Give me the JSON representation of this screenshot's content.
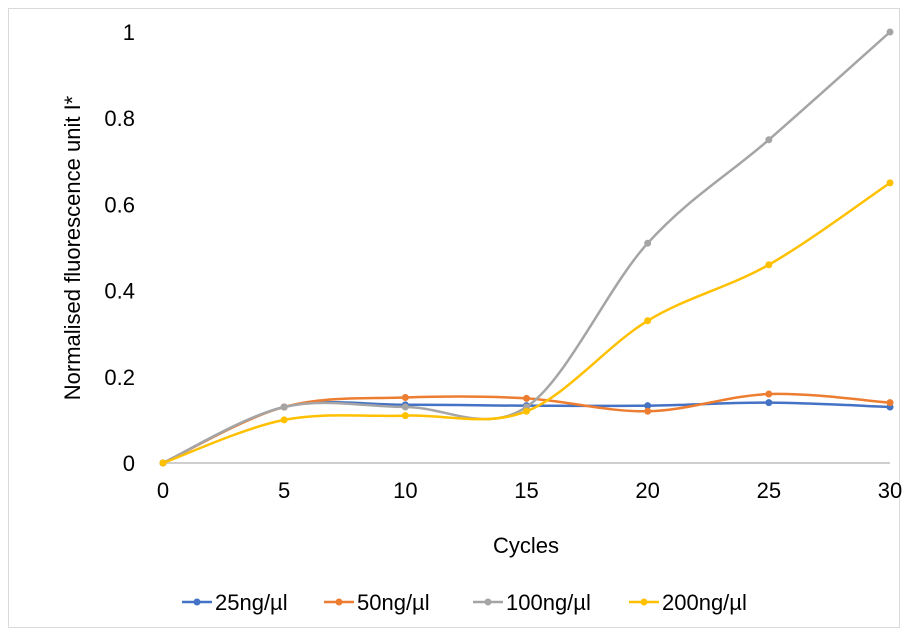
{
  "chart_data": {
    "type": "line",
    "smooth": true,
    "title": "",
    "xlabel": "Cycles",
    "ylabel": "Normalised fluorescence unit I*",
    "x": [
      0,
      5,
      10,
      15,
      20,
      25,
      30
    ],
    "xlim": [
      0,
      30
    ],
    "ylim": [
      0,
      1
    ],
    "xticks": [
      "0",
      "5",
      "10",
      "15",
      "20",
      "25",
      "30"
    ],
    "yticks": [
      "0",
      "0.2",
      "0.4",
      "0.6",
      "0.8",
      "1"
    ],
    "grid": false,
    "legend_position": "bottom",
    "series": [
      {
        "name": "25ng/µl",
        "color": "#4472C4",
        "values": [
          0,
          0.13,
          0.135,
          0.133,
          0.133,
          0.14,
          0.13
        ]
      },
      {
        "name": "50ng/µl",
        "color": "#ED7D31",
        "values": [
          0,
          0.13,
          0.152,
          0.15,
          0.12,
          0.16,
          0.14
        ]
      },
      {
        "name": "100ng/µl",
        "color": "#A5A5A5",
        "values": [
          0,
          0.13,
          0.13,
          0.13,
          0.51,
          0.75,
          1.0
        ]
      },
      {
        "name": "200ng/µl",
        "color": "#FFC000",
        "values": [
          0,
          0.1,
          0.11,
          0.12,
          0.33,
          0.46,
          0.65
        ]
      }
    ]
  }
}
